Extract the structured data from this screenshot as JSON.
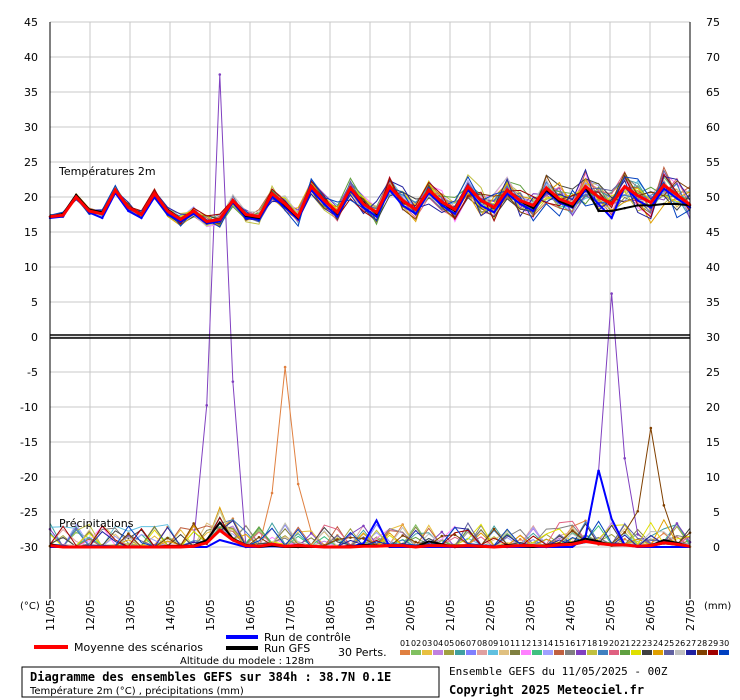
{
  "chart_data": {
    "type": "line",
    "title": "Diagramme des ensembles GEFS sur 384h : 38.7N 0.1E",
    "subtitle": "Température 2m (°C) , précipitations (mm)",
    "section_temp_label": "Températures 2m",
    "section_precip_label": "Précipitations",
    "left_axis_unit": "(°C)",
    "right_axis_unit": "(mm)",
    "left_ticks": [
      "45",
      "40",
      "35",
      "30",
      "25",
      "20",
      "15",
      "10",
      "5",
      "0",
      "-5",
      "-10",
      "-15",
      "-20",
      "-25",
      "-30"
    ],
    "right_ticks": [
      "75",
      "70",
      "65",
      "60",
      "55",
      "50",
      "45",
      "40",
      "35",
      "30",
      "25",
      "20",
      "15",
      "10",
      "5",
      "0"
    ],
    "left_ylim": [
      -30,
      45
    ],
    "right_ylim": [
      0,
      75
    ],
    "x_tick_labels": [
      "11/05",
      "12/05",
      "13/05",
      "14/05",
      "15/05",
      "16/05",
      "17/05",
      "18/05",
      "19/05",
      "20/05",
      "21/05",
      "22/05",
      "23/05",
      "24/05",
      "25/05",
      "26/05",
      "27/05"
    ],
    "grid": true,
    "legend": {
      "mean_label": "Moyenne des scénarios",
      "control_label": "Run de contrôle",
      "gfs_label": "Run GFS",
      "perts_label": "30 Perts.",
      "altitude_label": "Altitude du modele : 128m",
      "mean_color": "#ff0000",
      "control_color": "#0000ff",
      "gfs_color": "#000000"
    },
    "perturbations": {
      "labels": [
        "01",
        "02",
        "03",
        "04",
        "05",
        "06",
        "07",
        "08",
        "09",
        "10",
        "11",
        "12",
        "13",
        "14",
        "15",
        "16",
        "17",
        "18",
        "19",
        "20",
        "21",
        "22",
        "23",
        "24",
        "25",
        "26",
        "27",
        "28",
        "29",
        "30"
      ],
      "colors": [
        "#e08040",
        "#80c060",
        "#e8c040",
        "#c080e0",
        "#a0a040",
        "#40a0a0",
        "#8080ff",
        "#e0a0a0",
        "#60c0e0",
        "#e0c080",
        "#808040",
        "#ff80ff",
        "#40c080",
        "#a0a0ff",
        "#c06040",
        "#808080",
        "#8040c0",
        "#c0c040",
        "#4080c0",
        "#e06080",
        "#60a040",
        "#e0e000",
        "#404040",
        "#e0a000",
        "#6060a0",
        "#c0c0c0",
        "#2020a0",
        "#804000",
        "#a00000",
        "#0040c0"
      ]
    },
    "series": [
      {
        "name": "Moyenne des scénarios",
        "color": "#ff0000",
        "width": 3,
        "temp": [
          17.2,
          17.4,
          20.0,
          18.0,
          17.6,
          21.0,
          18.5,
          17.5,
          20.5,
          18.0,
          16.8,
          18.0,
          16.5,
          16.8,
          19.5,
          17.5,
          17.2,
          20.5,
          19.0,
          17.2,
          21.5,
          19.5,
          17.8,
          21.3,
          19.0,
          17.8,
          21.5,
          19.5,
          18.2,
          21.0,
          19.3,
          18.2,
          21.5,
          19.5,
          18.5,
          21.0,
          19.5,
          18.8,
          21.3,
          19.7,
          19.0,
          21.5,
          20.0,
          19.0,
          21.5,
          20.2,
          19.2,
          21.7,
          20.3,
          18.9
        ],
        "precip": [
          0.2,
          0,
          0,
          0,
          0,
          0,
          0,
          0,
          0,
          0,
          0,
          0.1,
          0.6,
          2.4,
          1.0,
          0.2,
          0.1,
          0.4,
          0.1,
          0.2,
          0.1,
          0,
          0,
          0,
          0.1,
          0.1,
          0.2,
          0.2,
          0,
          0.2,
          0.2,
          0.1,
          0.2,
          0.1,
          0,
          0.1,
          0.2,
          0.2,
          0.1,
          0.3,
          0.4,
          0.8,
          0.5,
          0.3,
          0.3,
          0.1,
          0.2,
          0.6,
          0.4,
          0.1
        ]
      },
      {
        "name": "Run de contrôle",
        "color": "#0000ff",
        "width": 2,
        "temp": [
          17.0,
          17.2,
          20.2,
          17.8,
          17.0,
          20.6,
          18.0,
          17.0,
          20.0,
          17.5,
          16.5,
          17.6,
          16.2,
          16.5,
          19.2,
          17.0,
          16.8,
          20.0,
          18.5,
          16.8,
          21.0,
          19.0,
          17.2,
          21.0,
          18.5,
          17.2,
          21.0,
          18.8,
          17.6,
          20.6,
          18.8,
          17.6,
          21.0,
          18.8,
          17.8,
          20.5,
          19.0,
          18.0,
          20.8,
          19.2,
          18.5,
          21.0,
          19.0,
          17.0,
          21.5,
          19.5,
          18.5,
          21.2,
          19.8,
          18.5
        ],
        "precip": [
          0,
          0,
          0,
          0,
          0,
          0,
          0,
          0,
          0,
          0,
          0,
          0,
          0,
          1.0,
          0.5,
          0,
          0,
          0.1,
          0,
          0,
          0,
          0,
          0,
          0,
          0.5,
          3.8,
          0,
          0,
          0,
          0,
          0,
          0,
          0,
          0,
          0,
          0,
          0,
          0,
          0,
          0,
          0,
          1.5,
          11.0,
          4.0,
          0.3,
          0,
          0,
          0,
          0,
          0
        ]
      },
      {
        "name": "Run GFS",
        "color": "#000000",
        "width": 2,
        "temp": [
          17.2,
          17.6,
          20.3,
          18.2,
          17.8,
          21.0,
          18.6,
          17.6,
          20.4,
          18.2,
          16.9,
          18.0,
          16.4,
          16.9,
          19.4,
          17.3,
          17.0,
          20.6,
          18.8,
          17.0,
          21.6,
          19.6,
          17.6,
          21.4,
          19.2,
          17.6,
          21.6,
          19.4,
          18.2,
          21.0,
          19.2,
          18.0,
          21.4,
          19.4,
          18.4,
          21.0,
          19.4,
          18.4,
          21.0,
          19.4,
          18.6,
          21.4,
          18.0,
          18.0,
          18.4,
          18.8,
          18.8,
          19.0,
          19.0,
          18.8
        ],
        "precip": [
          0.4,
          0,
          0,
          0,
          0,
          0,
          0,
          0,
          0,
          0,
          0,
          0.2,
          1.0,
          3.5,
          1.2,
          0.3,
          0,
          0.2,
          0,
          0,
          0,
          0,
          0,
          0,
          0.3,
          0.2,
          0.1,
          0.2,
          0,
          0.8,
          0.4,
          0,
          0.1,
          0,
          0,
          0.3,
          0.1,
          0,
          0.2,
          0.4,
          0.6,
          1.2,
          0.8,
          0.2,
          0.3,
          0.1,
          0.2,
          1.0,
          0.6,
          0.1
        ]
      }
    ],
    "member_peaks": {
      "purple_day14_peak_mm": 67.5,
      "orange_day15_peak_mm": 25.7,
      "purple_day24_peak_mm": 36.2,
      "brown_day26_peak_mm": 17.0
    }
  },
  "footer": {
    "ensemble_label": "Ensemble GEFS du 11/05/2025 - 00Z",
    "copyright": "Copyright 2025 Meteociel.fr"
  }
}
